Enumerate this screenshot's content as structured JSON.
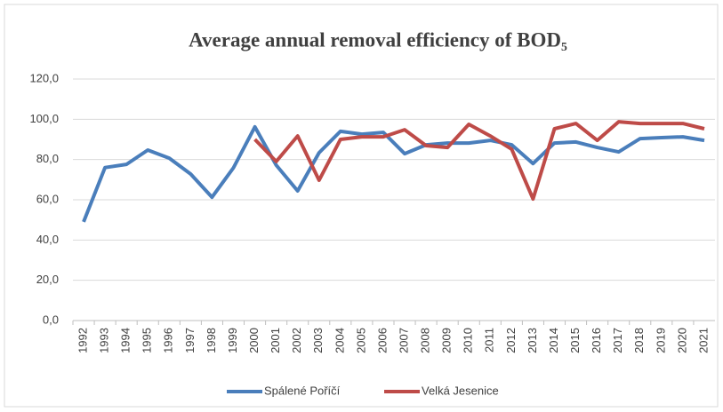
{
  "chart_data": {
    "type": "line",
    "title": "Average annual removal efficiency of BOD₅",
    "categories": [
      "1992",
      "1993",
      "1994",
      "1995",
      "1996",
      "1997",
      "1998",
      "1999",
      "2000",
      "2001",
      "2002",
      "2003",
      "2004",
      "2005",
      "2006",
      "2007",
      "2008",
      "2009",
      "2010",
      "2011",
      "2012",
      "2013",
      "2014",
      "2015",
      "2016",
      "2017",
      "2018",
      "2019",
      "2020",
      "2021"
    ],
    "series": [
      {
        "name": "Spálené Poříčí",
        "color": "#4a7ebb",
        "values": [
          49,
          76,
          77.6,
          84.7,
          80.7,
          72.8,
          61.3,
          75.9,
          96.2,
          77.2,
          64.4,
          83.4,
          94,
          92.6,
          93.5,
          82.9,
          87.3,
          88.2,
          88.2,
          89.5,
          87.3,
          78,
          88.2,
          88.7,
          86,
          83.8,
          90.4,
          90.9,
          91.3,
          89.5
        ]
      },
      {
        "name": "Velká Jesenice",
        "color": "#be4b48",
        "values": [
          null,
          null,
          null,
          null,
          null,
          null,
          null,
          null,
          90,
          79,
          91.7,
          69.7,
          90,
          91.3,
          91.3,
          94.8,
          86.9,
          86,
          97.5,
          91.7,
          85.1,
          60.4,
          95.3,
          97.9,
          89.5,
          98.8,
          97.9,
          97.9,
          97.9,
          95.3
        ]
      }
    ],
    "ylim": [
      0,
      120
    ],
    "yticks": [
      {
        "value": 0,
        "label": "0,0"
      },
      {
        "value": 20,
        "label": "20,0"
      },
      {
        "value": 40,
        "label": "40,0"
      },
      {
        "value": 60,
        "label": "60,0"
      },
      {
        "value": 80,
        "label": "80,0"
      },
      {
        "value": 100,
        "label": "100,0"
      },
      {
        "value": 120,
        "label": "120,0"
      }
    ],
    "grid": true
  }
}
